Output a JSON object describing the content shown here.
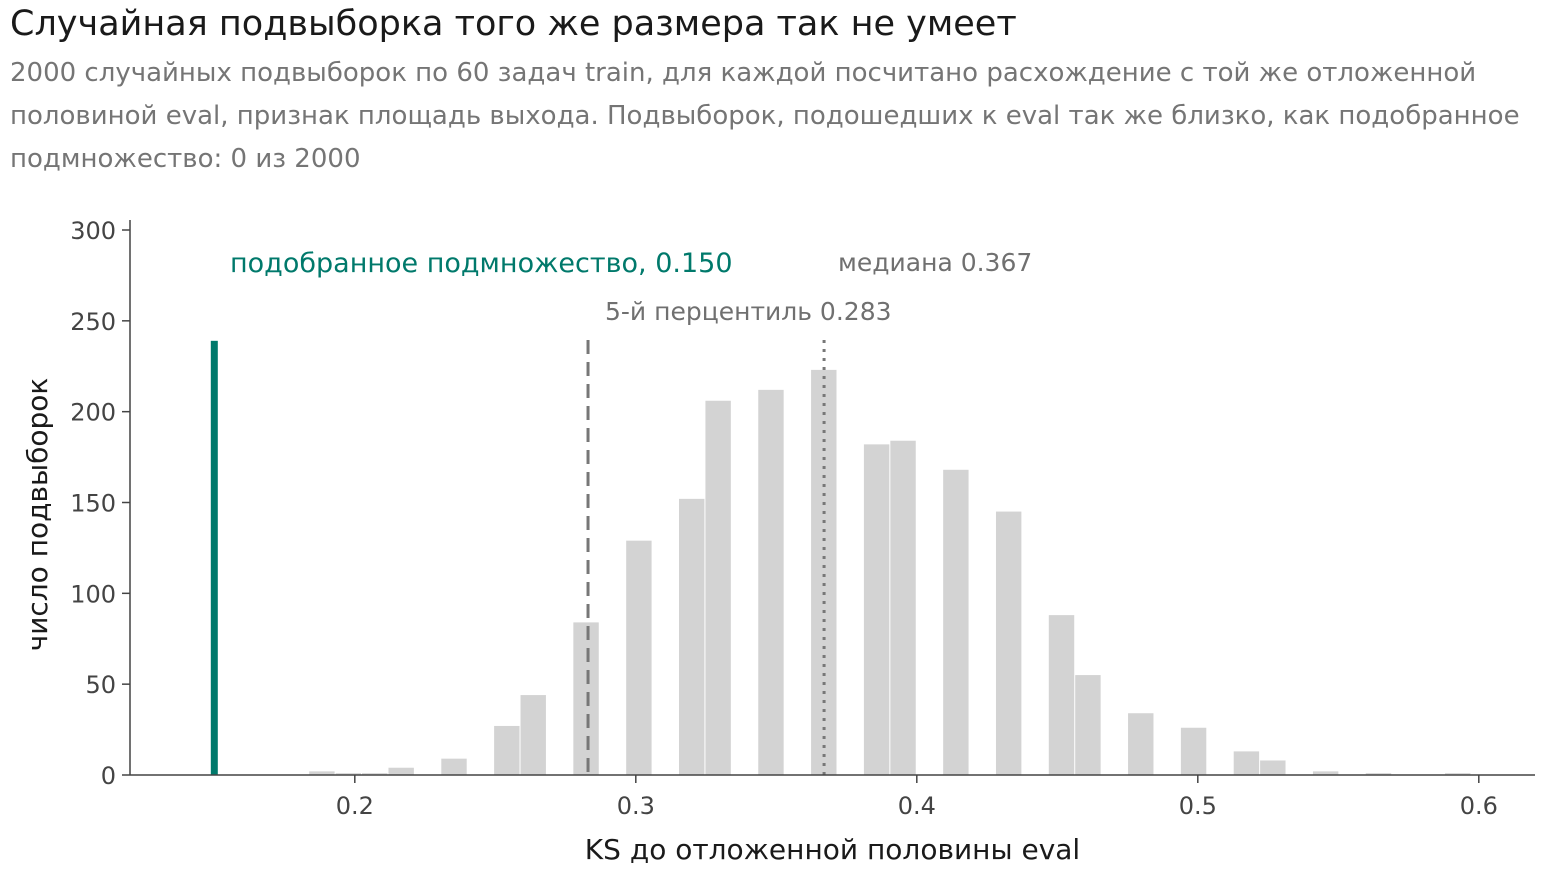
{
  "chart_data": {
    "type": "bar",
    "title": "Случайная подвыборка того же размера так не умеет",
    "subtitle": "2000 случайных подвыборок по 60 задач train, для каждой посчитано расхождение с той же отложенной половиной eval, признак площадь выхода. Подвыборок, подошедших к eval так же близко, как подобранное подмножество: 0 из 2000",
    "xlabel": "KS до отложенной половины eval",
    "ylabel": "число подвыборок",
    "xlim": [
      0.12,
      0.62
    ],
    "ylim": [
      0,
      300
    ],
    "x_ticks": [
      0.2,
      0.3,
      0.4,
      0.5,
      0.6
    ],
    "x_tick_labels": [
      "0.2",
      "0.3",
      "0.4",
      "0.5",
      "0.6"
    ],
    "y_ticks": [
      0,
      50,
      100,
      150,
      200,
      250,
      300
    ],
    "y_tick_labels": [
      "0",
      "50",
      "100",
      "150",
      "200",
      "250",
      "300"
    ],
    "grid": false,
    "bin_width": 0.0094,
    "bins": [
      {
        "x": 0.1883,
        "count": 2
      },
      {
        "x": 0.1977,
        "count": 1
      },
      {
        "x": 0.2071,
        "count": 1
      },
      {
        "x": 0.2165,
        "count": 4
      },
      {
        "x": 0.2259,
        "count": 0
      },
      {
        "x": 0.2353,
        "count": 9
      },
      {
        "x": 0.2447,
        "count": 0
      },
      {
        "x": 0.2541,
        "count": 27
      },
      {
        "x": 0.2635,
        "count": 44
      },
      {
        "x": 0.2729,
        "count": 0
      },
      {
        "x": 0.2823,
        "count": 84
      },
      {
        "x": 0.2917,
        "count": 0
      },
      {
        "x": 0.3011,
        "count": 129
      },
      {
        "x": 0.3105,
        "count": 0
      },
      {
        "x": 0.3199,
        "count": 152
      },
      {
        "x": 0.3293,
        "count": 206
      },
      {
        "x": 0.3387,
        "count": 0
      },
      {
        "x": 0.3481,
        "count": 212
      },
      {
        "x": 0.3575,
        "count": 0
      },
      {
        "x": 0.3669,
        "count": 223
      },
      {
        "x": 0.3763,
        "count": 0
      },
      {
        "x": 0.3857,
        "count": 182
      },
      {
        "x": 0.3951,
        "count": 184
      },
      {
        "x": 0.4045,
        "count": 0
      },
      {
        "x": 0.4139,
        "count": 168
      },
      {
        "x": 0.4233,
        "count": 0
      },
      {
        "x": 0.4327,
        "count": 145
      },
      {
        "x": 0.4421,
        "count": 0
      },
      {
        "x": 0.4515,
        "count": 88
      },
      {
        "x": 0.4609,
        "count": 55
      },
      {
        "x": 0.4703,
        "count": 0
      },
      {
        "x": 0.4797,
        "count": 34
      },
      {
        "x": 0.4891,
        "count": 0
      },
      {
        "x": 0.4985,
        "count": 26
      },
      {
        "x": 0.5079,
        "count": 0
      },
      {
        "x": 0.5173,
        "count": 13
      },
      {
        "x": 0.5267,
        "count": 8
      },
      {
        "x": 0.5361,
        "count": 0
      },
      {
        "x": 0.5455,
        "count": 2
      },
      {
        "x": 0.5549,
        "count": 0
      },
      {
        "x": 0.5643,
        "count": 1
      },
      {
        "x": 0.5737,
        "count": 0
      },
      {
        "x": 0.5831,
        "count": 0
      },
      {
        "x": 0.5925,
        "count": 1
      }
    ],
    "markers": {
      "selected": {
        "x": 0.15,
        "height": 239,
        "label": "подобранное подмножество, 0.150",
        "color": "#00796b"
      },
      "p5": {
        "x": 0.283,
        "label": "5-й перцентиль 0.283",
        "style": "dashed",
        "color": "#777777"
      },
      "median": {
        "x": 0.367,
        "label": "медиана 0.367",
        "style": "dotted",
        "color": "#777777"
      }
    },
    "colors": {
      "bars": "#d3d3d3",
      "axis": "#444444"
    }
  }
}
